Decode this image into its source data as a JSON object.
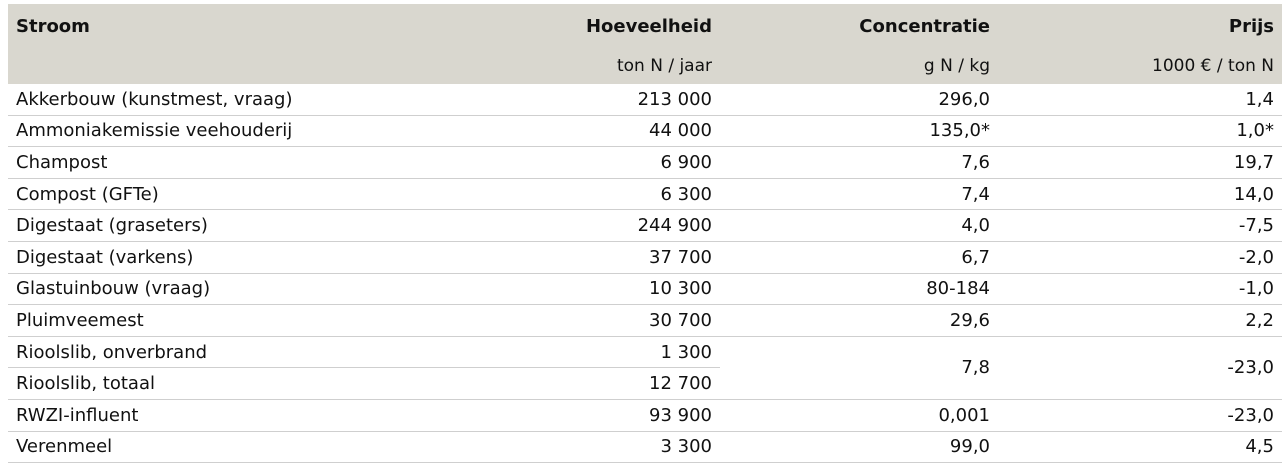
{
  "header": {
    "col1": "Stroom",
    "col2": "Hoeveelheid",
    "col3": "Concentratie",
    "col4": "Prijs"
  },
  "units": {
    "col1": "",
    "col2": "ton N / jaar",
    "col3": "g N / kg",
    "col4": "1000 € / ton N"
  },
  "rows": [
    {
      "stroom": "Akkerbouw (kunstmest, vraag)",
      "hoeveelheid": "213 000",
      "concentratie": "296,0",
      "prijs": "1,4"
    },
    {
      "stroom": "Ammoniakemissie veehouderij",
      "hoeveelheid": "44 000",
      "concentratie": "135,0*",
      "prijs": "1,0*"
    },
    {
      "stroom": "Champost",
      "hoeveelheid": "6 900",
      "concentratie": "7,6",
      "prijs": "19,7"
    },
    {
      "stroom": "Compost (GFTe)",
      "hoeveelheid": "6 300",
      "concentratie": "7,4",
      "prijs": "14,0"
    },
    {
      "stroom": "Digestaat (graseters)",
      "hoeveelheid": "244 900",
      "concentratie": "4,0",
      "prijs": "-7,5"
    },
    {
      "stroom": "Digestaat (varkens)",
      "hoeveelheid": "37 700",
      "concentratie": "6,7",
      "prijs": "-2,0"
    },
    {
      "stroom": "Glastuinbouw (vraag)",
      "hoeveelheid": "10 300",
      "concentratie": "80-184",
      "prijs": "-1,0"
    },
    {
      "stroom": "Pluimveemest",
      "hoeveelheid": "30 700",
      "concentratie": "29,6",
      "prijs": "2,2"
    },
    {
      "stroom": "Rioolslib, onverbrand",
      "hoeveelheid": "1 300",
      "concentratie": "7,8",
      "prijs": "-23,0"
    },
    {
      "stroom": "Rioolslib, totaal",
      "hoeveelheid": "12 700",
      "concentratie": "",
      "prijs": ""
    },
    {
      "stroom": "RWZI-influent",
      "hoeveelheid": "93 900",
      "concentratie": "0,001",
      "prijs": "-23,0"
    },
    {
      "stroom": "Verenmeel",
      "hoeveelheid": "3 300",
      "concentratie": "99,0",
      "prijs": "4,5"
    }
  ]
}
